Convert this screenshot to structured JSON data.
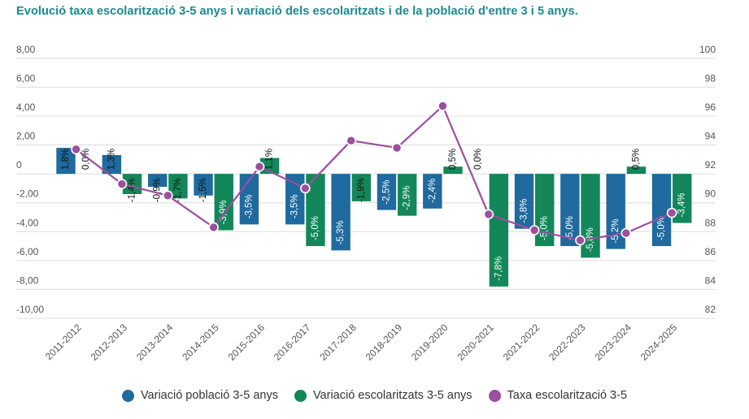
{
  "title": "Evolució taxa escolarització 3-5 anys i variació dels escolaritzats i de la població d'entre 3 i 5 anys.",
  "chart_data": {
    "type": "bar",
    "combo": "grouped bars (left axis) + line (right axis)",
    "title": "Evolució taxa escolarització 3-5 anys i variació dels escolaritzats i de la població d'entre 3 i 5 anys.",
    "xlabel": "",
    "ylabel": "",
    "categories": [
      "2011-2012",
      "2012-2013",
      "2013-2014",
      "2014-2015",
      "2015-2016",
      "2016-2017",
      "2017-2018",
      "2018-2019",
      "2019-2020",
      "2020-2021",
      "2021-2022",
      "2022-2023",
      "2023-2024",
      "2024-2025"
    ],
    "series": [
      {
        "name": "Variació població 3-5 anys",
        "type": "bar",
        "axis": "left",
        "color": "#1f6a9e",
        "values": [
          1.8,
          1.3,
          -0.9,
          -1.5,
          -3.5,
          -3.5,
          -5.3,
          -2.5,
          -2.4,
          0.0,
          -3.8,
          -5.0,
          -5.2,
          -5.0
        ],
        "data_labels": [
          "1,8%",
          "1,3%",
          "-0,9%",
          "-1,5%",
          "-3,5%",
          "-3,5%",
          "-5,3%",
          "-2,5%",
          "-2,4%",
          "0,0%",
          "-3,8%",
          "-5,0%",
          "-5,2%",
          "-5,0%"
        ]
      },
      {
        "name": "Variació escolaritzats 3-5 anys",
        "type": "bar",
        "axis": "left",
        "color": "#13875a",
        "values": [
          0.0,
          -1.4,
          -1.7,
          -3.9,
          1.1,
          -5.0,
          -1.9,
          -2.9,
          0.5,
          -7.8,
          -5.0,
          -5.8,
          0.5,
          -3.4
        ],
        "data_labels": [
          "0,0%",
          "-1,4%",
          "-1,7%",
          "-3,9%",
          "1,1%",
          "-5,0%",
          "-1,9%",
          "-2,9%",
          "0,5%",
          "-7,8%",
          "-5,0%",
          "-5,8%",
          "0,5%",
          "-3,4%"
        ]
      },
      {
        "name": "Taxa escolarització 3-5",
        "type": "line",
        "axis": "right",
        "color": "#9b4f9c",
        "values": [
          93.7,
          91.3,
          90.5,
          88.3,
          92.5,
          91.0,
          94.3,
          93.8,
          96.7,
          89.2,
          88.1,
          87.4,
          87.9,
          89.3
        ]
      }
    ],
    "y_left": {
      "range": [
        -10,
        8
      ],
      "ticks": [
        8,
        6,
        4,
        2,
        0,
        -2,
        -4,
        -6,
        -8,
        -10
      ],
      "tick_labels": [
        "8,00",
        "6,00",
        "4,00",
        "2,00",
        "0",
        "-2,00",
        "-4,00",
        "-6,00",
        "-8,00",
        "-10,00"
      ]
    },
    "y_right": {
      "range": [
        82,
        100
      ],
      "ticks": [
        100,
        98,
        96,
        94,
        92,
        90,
        88,
        86,
        84,
        82
      ],
      "tick_labels": [
        "100",
        "98",
        "96",
        "94",
        "92",
        "90",
        "88",
        "86",
        "84",
        "82"
      ]
    },
    "grid": true,
    "legend": "bottom-center"
  },
  "legend": [
    {
      "label": "Variació població 3-5 anys",
      "color": "#1f6a9e"
    },
    {
      "label": "Variació escolaritzats 3-5 anys",
      "color": "#13875a"
    },
    {
      "label": "Taxa escolarització 3-5",
      "color": "#9b4f9c"
    }
  ]
}
